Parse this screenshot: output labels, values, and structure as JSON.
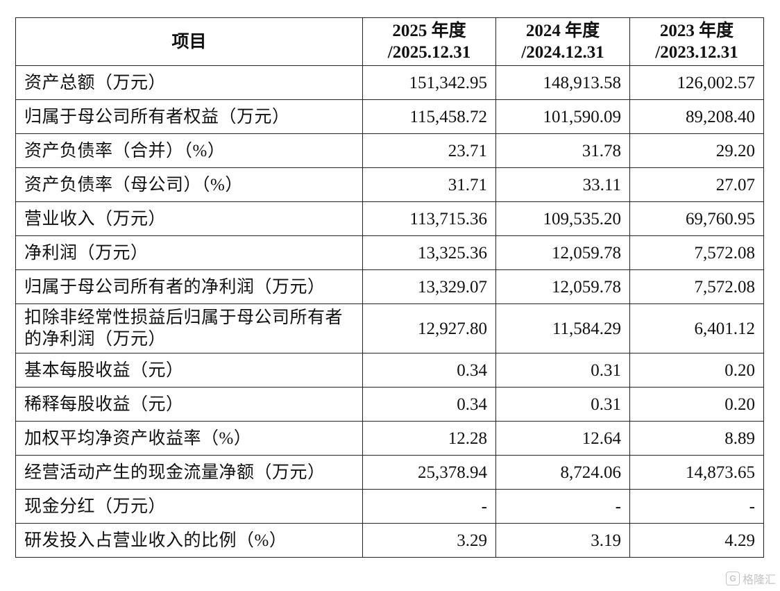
{
  "table": {
    "header": {
      "item": "项目",
      "col1_line1": "2025 年度",
      "col1_line2": "/2025.12.31",
      "col2_line1": "2024 年度",
      "col2_line2": "/2024.12.31",
      "col3_line1": "2023 年度",
      "col3_line2": "/2023.12.31"
    },
    "rows": [
      {
        "label": "资产总额（万元）",
        "v2025": "151,342.95",
        "v2024": "148,913.58",
        "v2023": "126,002.57"
      },
      {
        "label": "归属于母公司所有者权益（万元）",
        "v2025": "115,458.72",
        "v2024": "101,590.09",
        "v2023": "89,208.40"
      },
      {
        "label": "资产负债率（合并）（%）",
        "v2025": "23.71",
        "v2024": "31.78",
        "v2023": "29.20"
      },
      {
        "label": "资产负债率（母公司）（%）",
        "v2025": "31.71",
        "v2024": "33.11",
        "v2023": "27.07"
      },
      {
        "label": "营业收入（万元）",
        "v2025": "113,715.36",
        "v2024": "109,535.20",
        "v2023": "69,760.95"
      },
      {
        "label": "净利润（万元）",
        "v2025": "13,325.36",
        "v2024": "12,059.78",
        "v2023": "7,572.08"
      },
      {
        "label": "归属于母公司所有者的净利润（万元）",
        "v2025": "13,329.07",
        "v2024": "12,059.78",
        "v2023": "7,572.08"
      },
      {
        "label": "扣除非经常性损益后归属于母公司所有者的净利润（万元）",
        "v2025": "12,927.80",
        "v2024": "11,584.29",
        "v2023": "6,401.12"
      },
      {
        "label": "基本每股收益（元）",
        "v2025": "0.34",
        "v2024": "0.31",
        "v2023": "0.20"
      },
      {
        "label": "稀释每股收益（元）",
        "v2025": "0.34",
        "v2024": "0.31",
        "v2023": "0.20"
      },
      {
        "label": "加权平均净资产收益率（%）",
        "v2025": "12.28",
        "v2024": "12.64",
        "v2023": "8.89"
      },
      {
        "label": "经营活动产生的现金流量净额（万元）",
        "v2025": "25,378.94",
        "v2024": "8,724.06",
        "v2023": "14,873.65"
      },
      {
        "label": "现金分红（万元）",
        "v2025": "-",
        "v2024": "-",
        "v2023": "-"
      },
      {
        "label": "研发投入占营业收入的比例（%）",
        "v2025": "3.29",
        "v2024": "3.19",
        "v2023": "4.29"
      }
    ]
  },
  "watermark": {
    "icon": "gelonghui-logo-icon",
    "icon_glyph": "G",
    "text": "格隆汇"
  }
}
